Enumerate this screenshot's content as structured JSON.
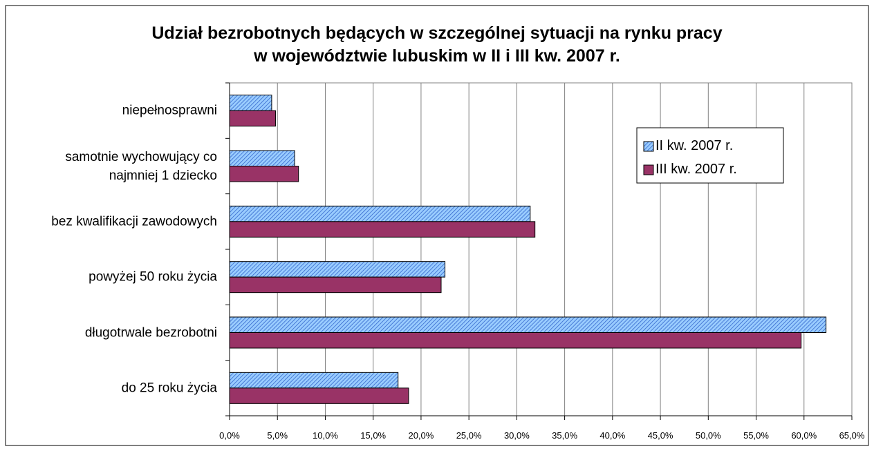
{
  "chart_data": {
    "type": "barh",
    "title": "Udział bezrobotnych będących w szczególnej sytuacji na rynku pracy\nw województwie lubuskim w II i III kw. 2007 r.",
    "categories": [
      "niepełnosprawni",
      "samotnie wychowujący co\nnajmniej 1 dziecko",
      "bez kwalifikacji zawodowych",
      "powyżej 50 roku życia",
      "długotrwale bezrobotni",
      "do 25 roku życia"
    ],
    "series": [
      {
        "name": "II kw. 2007 r.",
        "color": "#99ccff",
        "hatch": true,
        "values": [
          4.4,
          6.8,
          31.4,
          22.5,
          62.3,
          17.6
        ]
      },
      {
        "name": "III kw. 2007 r.",
        "color": "#993366",
        "hatch": false,
        "values": [
          4.8,
          7.2,
          31.9,
          22.1,
          59.7,
          18.7
        ]
      }
    ],
    "xlim": [
      0,
      65
    ],
    "xticks": [
      {
        "value": 0,
        "label": "0,0%"
      },
      {
        "value": 5,
        "label": "5,0%"
      },
      {
        "value": 10,
        "label": "10,0%"
      },
      {
        "value": 15,
        "label": "15,0%"
      },
      {
        "value": 20,
        "label": "20,0%"
      },
      {
        "value": 25,
        "label": "25,0%"
      },
      {
        "value": 30,
        "label": "30,0%"
      },
      {
        "value": 35,
        "label": "35,0%"
      },
      {
        "value": 40,
        "label": "40,0%"
      },
      {
        "value": 45,
        "label": "45,0%"
      },
      {
        "value": 50,
        "label": "50,0%"
      },
      {
        "value": 55,
        "label": "55,0%"
      },
      {
        "value": 60,
        "label": "60,0%"
      },
      {
        "value": 65,
        "label": "65,0%"
      }
    ],
    "grid": true,
    "legend": "upper right"
  }
}
